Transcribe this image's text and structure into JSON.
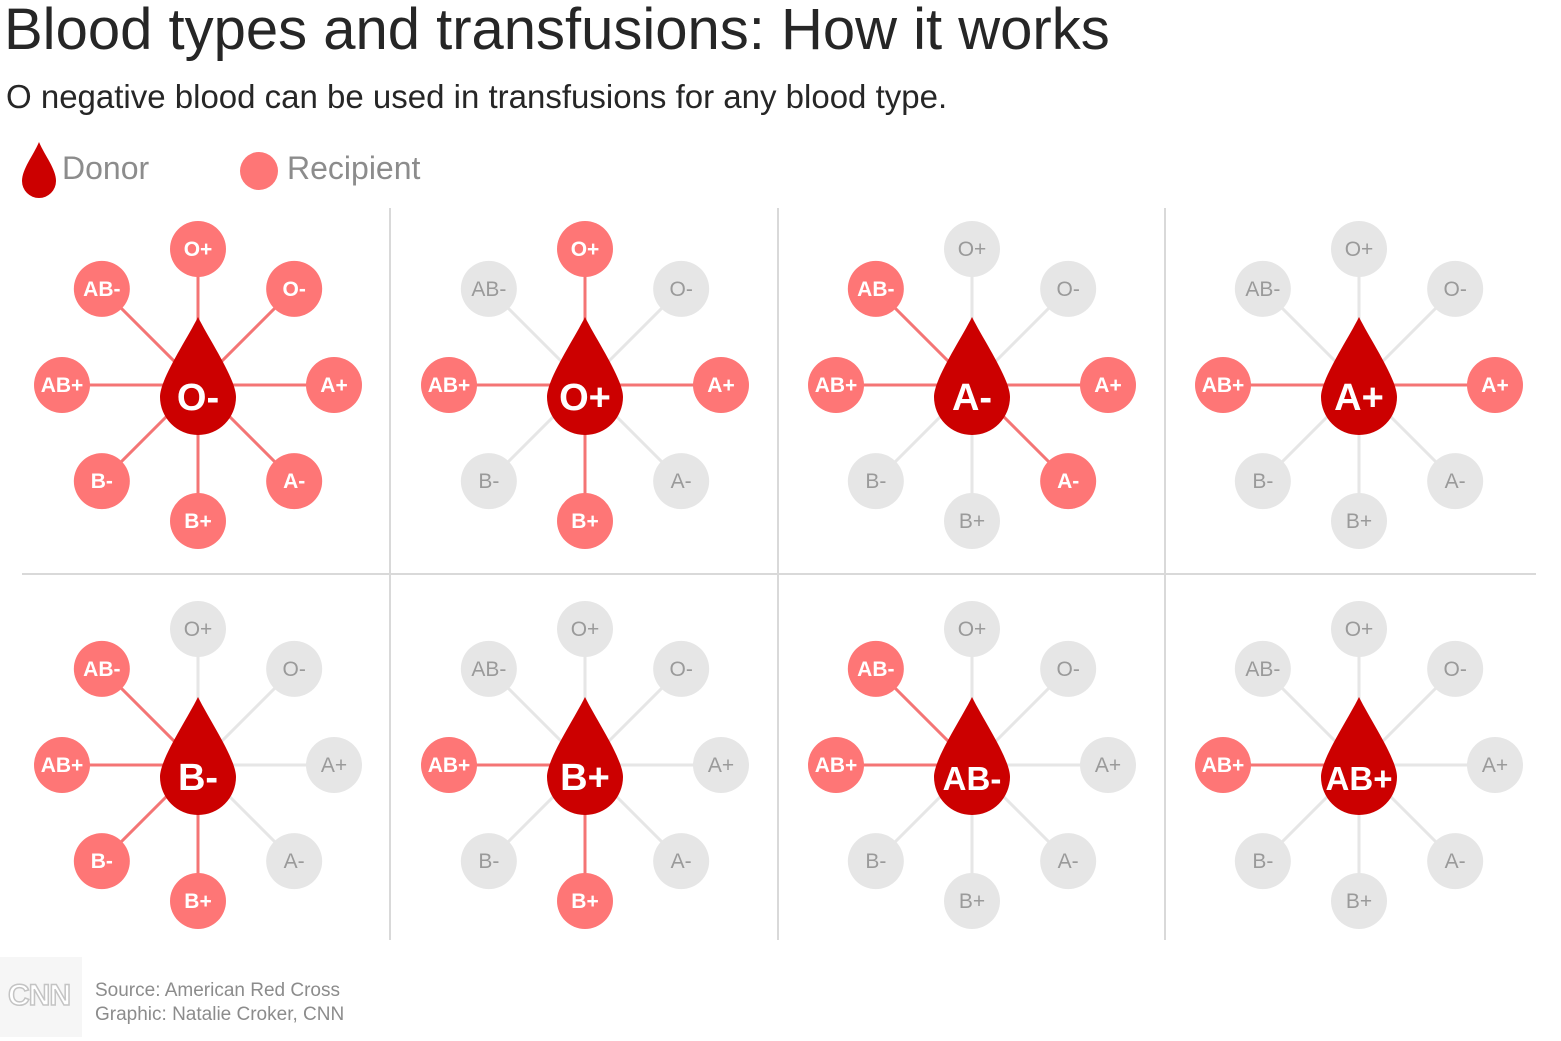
{
  "title": "Blood types and transfusions: How it works",
  "subtitle": "O negative blood can be used in transfusions for any blood type.",
  "legend": {
    "donor": "Donor",
    "recipient": "Recipient"
  },
  "colors": {
    "donor": "#cc0000",
    "recipient": "#fe7676",
    "recipient_line": "#f47575",
    "inactive": "#e6e6e6",
    "inactive_text": "#9a9a9a",
    "divider": "#d9d9d9"
  },
  "recipient_order": [
    "O+",
    "O-",
    "A+",
    "A-",
    "B+",
    "B-",
    "AB+",
    "AB-"
  ],
  "donors": [
    {
      "type": "O-",
      "can_give_to": [
        "O+",
        "O-",
        "A+",
        "A-",
        "B+",
        "B-",
        "AB+",
        "AB-"
      ]
    },
    {
      "type": "O+",
      "can_give_to": [
        "O+",
        "A+",
        "B+",
        "AB+"
      ]
    },
    {
      "type": "A-",
      "can_give_to": [
        "A+",
        "A-",
        "AB+",
        "AB-"
      ]
    },
    {
      "type": "A+",
      "can_give_to": [
        "A+",
        "AB+"
      ]
    },
    {
      "type": "B-",
      "can_give_to": [
        "B+",
        "B-",
        "AB+",
        "AB-"
      ]
    },
    {
      "type": "B+",
      "can_give_to": [
        "B+",
        "AB+"
      ]
    },
    {
      "type": "AB-",
      "can_give_to": [
        "AB+",
        "AB-"
      ]
    },
    {
      "type": "AB+",
      "can_give_to": [
        "AB+"
      ]
    }
  ],
  "footer": {
    "logo": "CNN",
    "source": "Source: American Red Cross",
    "credit": "Graphic: Natalie Croker, CNN"
  }
}
